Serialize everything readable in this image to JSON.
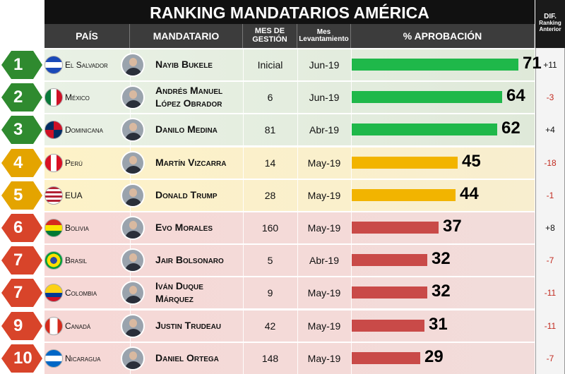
{
  "title": "RANKING MANDATARIOS AMÉRICA",
  "headers": {
    "country": "PAÍS",
    "leader": "MANDATARIO",
    "months_l1": "MES DE",
    "months_l2": "GESTIÓN",
    "survey_l1": "Mes",
    "survey_l2": "Levantamiento",
    "approval": "% APROBACIÓN",
    "diff_l1": "DIF.",
    "diff_l2": "Ranking",
    "diff_l3": "Anterior"
  },
  "colors": {
    "green": "#1fb84a",
    "yellow": "#f2b400",
    "red": "#c94a48",
    "negative_text": "#c22a1f"
  },
  "chart_data": {
    "type": "bar",
    "title": "RANKING MANDATARIOS AMÉRICA",
    "categories": [
      "Nayib Bukele",
      "Andrés Manuel López Obrador",
      "Danilo Medina",
      "Martín Vizcarra",
      "Donald Trump",
      "Evo Morales",
      "Jair Bolsonaro",
      "Iván Duque Márquez",
      "Justin Trudeau",
      "Daniel Ortega"
    ],
    "values": [
      71,
      64,
      62,
      45,
      44,
      37,
      32,
      32,
      31,
      29
    ],
    "xlabel": "",
    "ylabel": "% APROBACIÓN",
    "ylim": [
      0,
      100
    ]
  },
  "rows": [
    {
      "rank": "1",
      "country": "El Salvador",
      "leader_l1": "Nayib Bukele",
      "leader_l2": "",
      "months": "Inicial",
      "survey": "Jun-19",
      "approval": 71,
      "approval_label": "71",
      "diff": "+11",
      "tier": "g",
      "flag": "sv"
    },
    {
      "rank": "2",
      "country": "México",
      "leader_l1": "Andrés Manuel",
      "leader_l2": "López Obrador",
      "months": "6",
      "survey": "Jun-19",
      "approval": 64,
      "approval_label": "64",
      "diff": "-3",
      "tier": "g",
      "flag": "mx"
    },
    {
      "rank": "3",
      "country": "Dominicana",
      "leader_l1": "Danilo Medina",
      "leader_l2": "",
      "months": "81",
      "survey": "Abr-19",
      "approval": 62,
      "approval_label": "62",
      "diff": "+4",
      "tier": "g",
      "flag": "do"
    },
    {
      "rank": "4",
      "country": "Perú",
      "leader_l1": "Martín Vizcarra",
      "leader_l2": "",
      "months": "14",
      "survey": "May-19",
      "approval": 45,
      "approval_label": "45",
      "diff": "-18",
      "tier": "y",
      "flag": "pe"
    },
    {
      "rank": "5",
      "country": "EUA",
      "leader_l1": "Donald Trump",
      "leader_l2": "",
      "months": "28",
      "survey": "May-19",
      "approval": 44,
      "approval_label": "44",
      "diff": "-1",
      "tier": "y",
      "flag": "us"
    },
    {
      "rank": "6",
      "country": "Bolivia",
      "leader_l1": "Evo Morales",
      "leader_l2": "",
      "months": "160",
      "survey": "May-19",
      "approval": 37,
      "approval_label": "37",
      "diff": "+8",
      "tier": "r",
      "flag": "bo"
    },
    {
      "rank": "7",
      "country": "Brasil",
      "leader_l1": "Jair Bolsonaro",
      "leader_l2": "",
      "months": "5",
      "survey": "Abr-19",
      "approval": 32,
      "approval_label": "32",
      "diff": "-7",
      "tier": "r",
      "flag": "br"
    },
    {
      "rank": "7",
      "country": "Colombia",
      "leader_l1": "Iván Duque",
      "leader_l2": "Márquez",
      "months": "9",
      "survey": "May-19",
      "approval": 32,
      "approval_label": "32",
      "diff": "-11",
      "tier": "r",
      "flag": "co"
    },
    {
      "rank": "9",
      "country": "Canadá",
      "leader_l1": "Justin Trudeau",
      "leader_l2": "",
      "months": "42",
      "survey": "May-19",
      "approval": 31,
      "approval_label": "31",
      "diff": "-11",
      "tier": "r",
      "flag": "ca"
    },
    {
      "rank": "10",
      "country": "Nicaragua",
      "leader_l1": "Daniel Ortega",
      "leader_l2": "",
      "months": "148",
      "survey": "May-19",
      "approval": 29,
      "approval_label": "29",
      "diff": "-7",
      "tier": "r",
      "flag": "ni"
    }
  ]
}
